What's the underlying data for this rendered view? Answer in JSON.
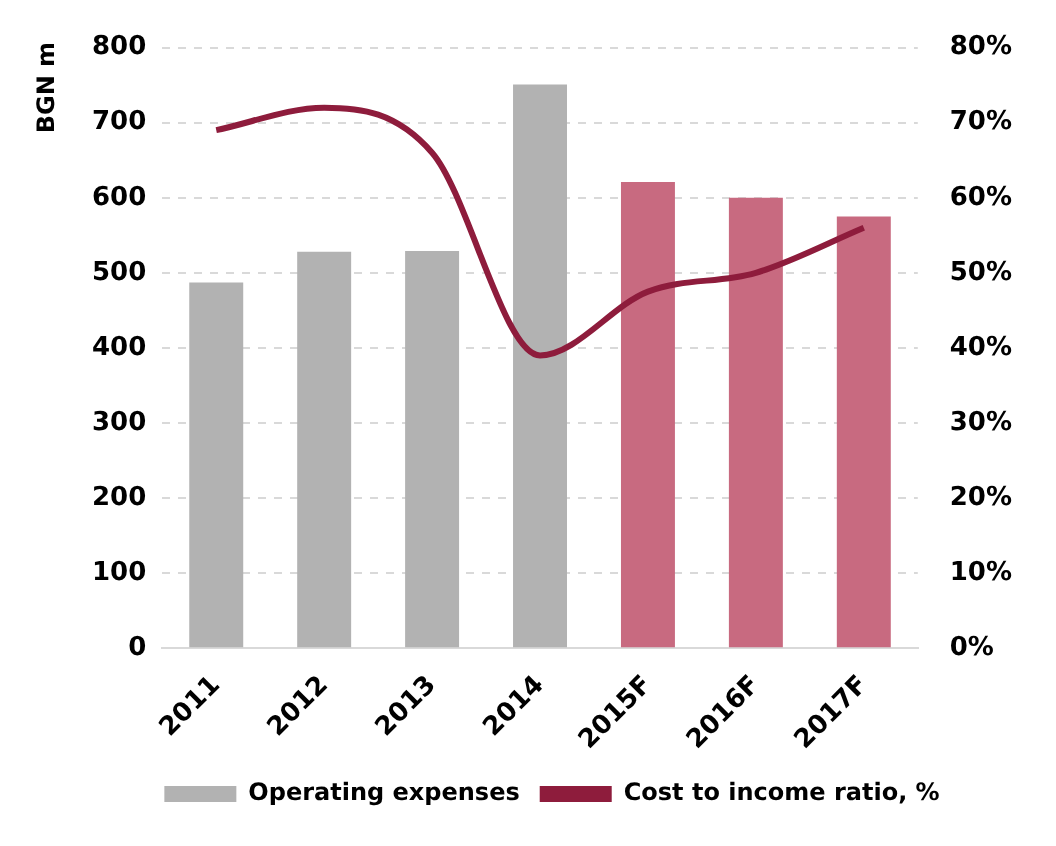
{
  "chart_data": {
    "type": "bar",
    "ylabel": "BGN m",
    "categories": [
      "2011",
      "2012",
      "2013",
      "2014",
      "2015F",
      "2016F",
      "2017F"
    ],
    "series": [
      {
        "name": "Operating expenses",
        "color": "#b2b2b2",
        "colors": [
          "#b2b2b2",
          "#b2b2b2",
          "#b2b2b2",
          "#b2b2b2",
          "#c86a80",
          "#c86a80",
          "#c86a80"
        ],
        "values": [
          487,
          528,
          529,
          751,
          621,
          600,
          575
        ]
      },
      {
        "name": "Cost to income ratio, %",
        "type": "line",
        "axis": "y2",
        "color": "#8e1c3c",
        "values": [
          69,
          72,
          66,
          39,
          47.5,
          50,
          56
        ]
      }
    ],
    "ylim": [
      0,
      800
    ],
    "yticks": [
      0,
      100,
      200,
      300,
      400,
      500,
      600,
      700,
      800
    ],
    "y2lim": [
      0,
      80
    ],
    "y2ticks": [
      {
        "value": 0,
        "label": "0%"
      },
      {
        "value": 10,
        "label": "10%"
      },
      {
        "value": 20,
        "label": "20%"
      },
      {
        "value": 30,
        "label": "30%"
      },
      {
        "value": 40,
        "label": "40%"
      },
      {
        "value": 50,
        "label": "50%"
      },
      {
        "value": 60,
        "label": "60%"
      },
      {
        "value": 70,
        "label": "70%"
      },
      {
        "value": 80,
        "label": "80%"
      }
    ],
    "grid": "y",
    "legend": "bottom",
    "marker": "none"
  }
}
